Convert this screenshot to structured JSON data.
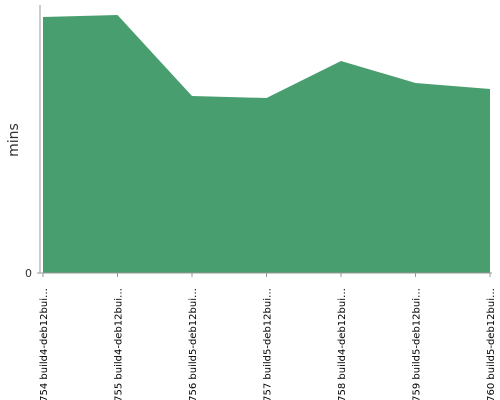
{
  "chart_data": {
    "type": "area",
    "y_label": "mins",
    "categories": [
      "#754 build4-deb12bui…",
      "#755 build4-deb12bui…",
      "#756 build5-deb12bui…",
      "#757 build5-deb12bui…",
      "#758 build4-deb12bui…",
      "#759 build5-deb12bui…",
      "#760 build5-deb12bui…"
    ],
    "values": [
      2.56,
      2.58,
      1.77,
      1.75,
      2.12,
      1.9,
      1.84
    ],
    "color": "#489e6f",
    "ylim": [
      0,
      2.68
    ],
    "yticks": [
      0
    ]
  }
}
